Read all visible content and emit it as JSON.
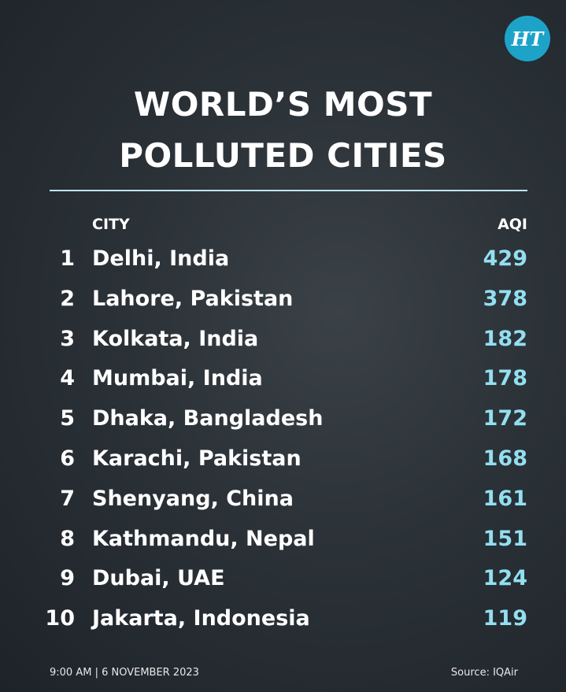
{
  "logo": "HT",
  "title": [
    "WORLD’S MOST",
    "POLLUTED CITIES"
  ],
  "table": {
    "header": [
      "CITY",
      "AQI"
    ],
    "rows": [
      [
        1,
        "Delhi, India",
        429
      ],
      [
        2,
        "Lahore, Pakistan",
        378
      ],
      [
        3,
        "Kolkata, India",
        182
      ],
      [
        4,
        "Mumbai, India",
        178
      ],
      [
        5,
        "Dhaka, Bangladesh",
        172
      ],
      [
        6,
        "Karachi, Pakistan",
        168
      ],
      [
        7,
        "Shenyang, China",
        161
      ],
      [
        8,
        "Kathmandu, Nepal",
        151
      ],
      [
        9,
        "Dubai, UAE",
        124
      ],
      [
        10,
        "Jakarta, Indonesia",
        119
      ]
    ]
  },
  "footer": {
    "timestamp": "9:00 AM | 6 NOVEMBER 2023",
    "source": "Source: IQAir"
  }
}
